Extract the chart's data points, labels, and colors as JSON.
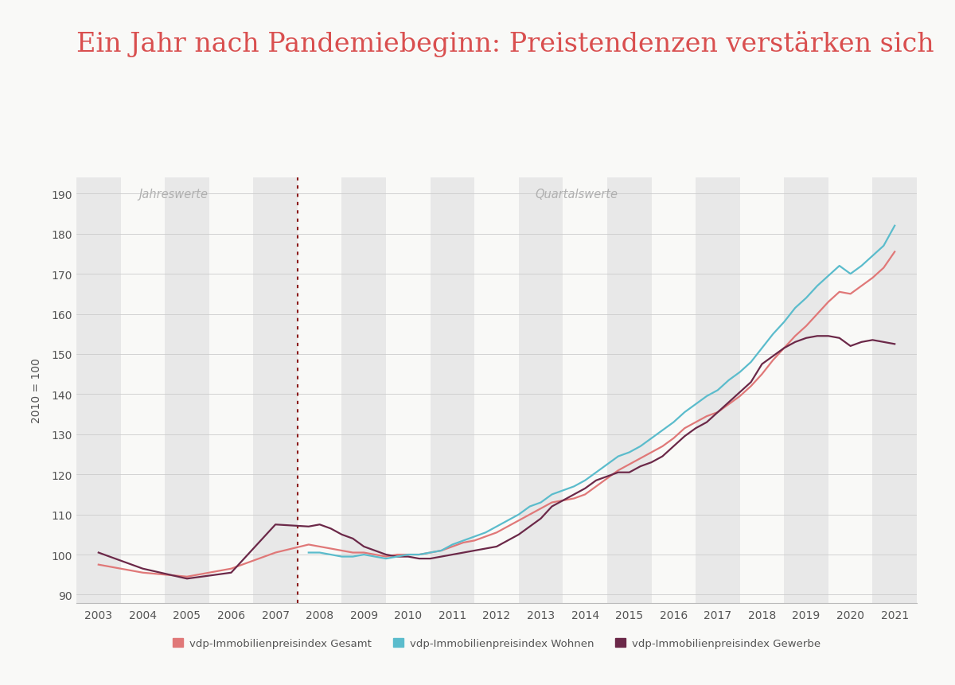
{
  "title": "Ein Jahr nach Pandemiebeginn: Preistendenzen verstärken sich",
  "title_color": "#D94F4F",
  "ylabel": "2010 = 100",
  "background_color": "#f9f9f7",
  "plot_bg_color": "#f9f9f7",
  "stripe_color": "#e8e8e8",
  "ylim": [
    88,
    194
  ],
  "yticks": [
    90,
    100,
    110,
    120,
    130,
    140,
    150,
    160,
    170,
    180,
    190
  ],
  "dotted_line_x": 2007.5,
  "label_jahreswerte": "Jahreswerte",
  "label_quartalswerte": "Quartalswerte",
  "legend_labels": [
    "vdp-Immobilienpreisindex Gesamt",
    "vdp-Immobilienpreisindex Wohnen",
    "vdp-Immobilienpreisindex Gewerbe"
  ],
  "colors": {
    "gesamt": "#E07878",
    "wohnen": "#5BBCCC",
    "gewerbe": "#6B2848"
  },
  "x_gesamt": [
    2003,
    2004,
    2005,
    2006,
    2007,
    2007.75,
    2008.0,
    2008.25,
    2008.5,
    2008.75,
    2009.0,
    2009.25,
    2009.5,
    2009.75,
    2010.0,
    2010.25,
    2010.5,
    2010.75,
    2011.0,
    2011.25,
    2011.5,
    2011.75,
    2012.0,
    2012.25,
    2012.5,
    2012.75,
    2013.0,
    2013.25,
    2013.5,
    2013.75,
    2014.0,
    2014.25,
    2014.5,
    2014.75,
    2015.0,
    2015.25,
    2015.5,
    2015.75,
    2016.0,
    2016.25,
    2016.5,
    2016.75,
    2017.0,
    2017.25,
    2017.5,
    2017.75,
    2018.0,
    2018.25,
    2018.5,
    2018.75,
    2019.0,
    2019.25,
    2019.5,
    2019.75,
    2020.0,
    2020.25,
    2020.5,
    2020.75,
    2021.0
  ],
  "y_gesamt": [
    97.5,
    95.5,
    94.5,
    96.5,
    100.5,
    102.5,
    102.0,
    101.5,
    101.0,
    100.5,
    100.5,
    100.0,
    99.5,
    100.0,
    100.0,
    100.0,
    100.5,
    101.0,
    102.0,
    103.0,
    103.5,
    104.5,
    105.5,
    107.0,
    108.5,
    110.0,
    111.5,
    113.0,
    113.5,
    114.0,
    115.0,
    117.0,
    119.0,
    121.0,
    122.5,
    124.0,
    125.5,
    127.0,
    129.0,
    131.5,
    133.0,
    134.5,
    135.5,
    137.5,
    139.5,
    142.0,
    145.0,
    148.5,
    151.5,
    154.5,
    157.0,
    160.0,
    163.0,
    165.5,
    165.0,
    167.0,
    169.0,
    171.5,
    175.5
  ],
  "x_wohnen": [
    2007.75,
    2008.0,
    2008.25,
    2008.5,
    2008.75,
    2009.0,
    2009.25,
    2009.5,
    2009.75,
    2010.0,
    2010.25,
    2010.5,
    2010.75,
    2011.0,
    2011.25,
    2011.5,
    2011.75,
    2012.0,
    2012.25,
    2012.5,
    2012.75,
    2013.0,
    2013.25,
    2013.5,
    2013.75,
    2014.0,
    2014.25,
    2014.5,
    2014.75,
    2015.0,
    2015.25,
    2015.5,
    2015.75,
    2016.0,
    2016.25,
    2016.5,
    2016.75,
    2017.0,
    2017.25,
    2017.5,
    2017.75,
    2018.0,
    2018.25,
    2018.5,
    2018.75,
    2019.0,
    2019.25,
    2019.5,
    2019.75,
    2020.0,
    2020.25,
    2020.5,
    2020.75,
    2021.0
  ],
  "y_wohnen": [
    100.5,
    100.5,
    100.0,
    99.5,
    99.5,
    100.0,
    99.5,
    99.0,
    99.5,
    100.0,
    100.0,
    100.5,
    101.0,
    102.5,
    103.5,
    104.5,
    105.5,
    107.0,
    108.5,
    110.0,
    112.0,
    113.0,
    115.0,
    116.0,
    117.0,
    118.5,
    120.5,
    122.5,
    124.5,
    125.5,
    127.0,
    129.0,
    131.0,
    133.0,
    135.5,
    137.5,
    139.5,
    141.0,
    143.5,
    145.5,
    148.0,
    151.5,
    155.0,
    158.0,
    161.5,
    164.0,
    167.0,
    169.5,
    172.0,
    170.0,
    172.0,
    174.5,
    177.0,
    182.0
  ],
  "x_gewerbe": [
    2003,
    2004,
    2005,
    2006,
    2007,
    2007.75,
    2008.0,
    2008.25,
    2008.5,
    2008.75,
    2009.0,
    2009.25,
    2009.5,
    2009.75,
    2010.0,
    2010.25,
    2010.5,
    2010.75,
    2011.0,
    2011.25,
    2011.5,
    2011.75,
    2012.0,
    2012.25,
    2012.5,
    2012.75,
    2013.0,
    2013.25,
    2013.5,
    2013.75,
    2014.0,
    2014.25,
    2014.5,
    2014.75,
    2015.0,
    2015.25,
    2015.5,
    2015.75,
    2016.0,
    2016.25,
    2016.5,
    2016.75,
    2017.0,
    2017.25,
    2017.5,
    2017.75,
    2018.0,
    2018.25,
    2018.5,
    2018.75,
    2019.0,
    2019.25,
    2019.5,
    2019.75,
    2020.0,
    2020.25,
    2020.5,
    2020.75,
    2021.0
  ],
  "y_gewerbe": [
    100.5,
    96.5,
    94.0,
    95.5,
    107.5,
    107.0,
    107.5,
    106.5,
    105.0,
    104.0,
    102.0,
    101.0,
    100.0,
    99.5,
    99.5,
    99.0,
    99.0,
    99.5,
    100.0,
    100.5,
    101.0,
    101.5,
    102.0,
    103.5,
    105.0,
    107.0,
    109.0,
    112.0,
    113.5,
    115.0,
    116.5,
    118.5,
    119.5,
    120.5,
    120.5,
    122.0,
    123.0,
    124.5,
    127.0,
    129.5,
    131.5,
    133.0,
    135.5,
    138.0,
    140.5,
    143.0,
    147.5,
    149.5,
    151.5,
    153.0,
    154.0,
    154.5,
    154.5,
    154.0,
    152.0,
    153.0,
    153.5,
    153.0,
    152.5
  ]
}
